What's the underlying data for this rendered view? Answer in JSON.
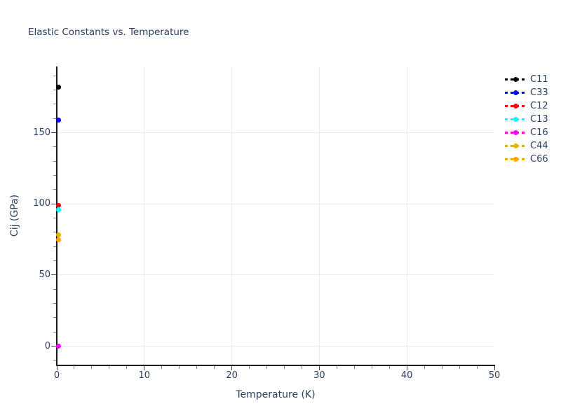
{
  "title": "Elastic Constants vs. Temperature",
  "chart_data": {
    "type": "scatter",
    "mode": "markers-with-dashed-line-style",
    "title": "Elastic Constants vs. Temperature",
    "xlabel": "Temperature (K)",
    "ylabel": "Cij (GPa)",
    "xlim": [
      0,
      50
    ],
    "ylim": [
      -13,
      196.5
    ],
    "x": [
      0
    ],
    "series": [
      {
        "name": "C11",
        "color": "#000000",
        "values": [
          182
        ]
      },
      {
        "name": "C33",
        "color": "#0000ff",
        "values": [
          159
        ]
      },
      {
        "name": "C12",
        "color": "#ff0000",
        "values": [
          99
        ]
      },
      {
        "name": "C13",
        "color": "#00ffff",
        "values": [
          96
        ]
      },
      {
        "name": "C16",
        "color": "#ff00ff",
        "values": [
          0
        ]
      },
      {
        "name": "C44",
        "color": "#e6b400",
        "values": [
          78
        ]
      },
      {
        "name": "C66",
        "color": "#ffa500",
        "values": [
          75
        ]
      }
    ],
    "y_major_ticks": [
      0,
      50,
      100,
      150
    ],
    "y_minor_step": 10,
    "x_major_ticks": [
      0,
      10,
      20,
      30,
      40,
      50
    ],
    "x_grid_ticks": [
      10,
      20,
      30,
      40
    ],
    "x_minor_step": 2,
    "grid": true,
    "legend_position": "outside-top-right"
  },
  "colors": {
    "text": "#2a3f5f",
    "grid": "#ebebeb",
    "axis": "#1c1c1c",
    "background": "#ffffff"
  }
}
